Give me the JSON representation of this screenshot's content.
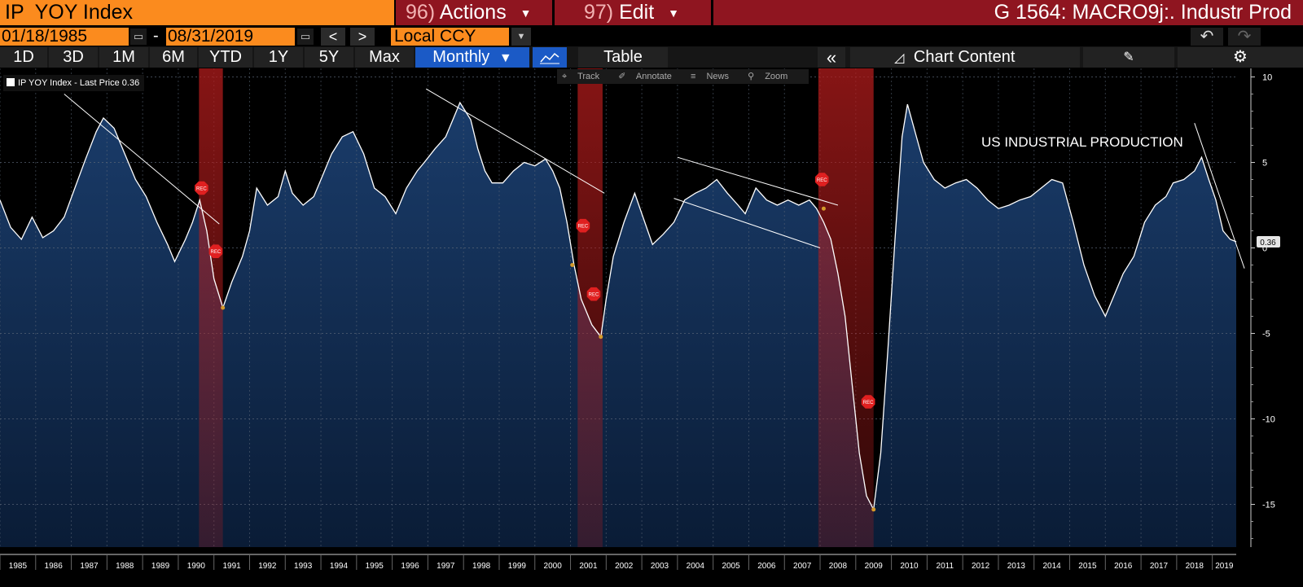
{
  "header": {
    "ticker": "IP  YOY Index",
    "actions_num": "96)",
    "actions_label": "Actions",
    "edit_num": "97)",
    "edit_label": "Edit",
    "title": "G 1564: MACRO9j:. Industr Prod"
  },
  "range": {
    "start": "01/18/1985",
    "dash": "-",
    "end": "08/31/2019",
    "prev": "<",
    "next": ">",
    "currency": "Local CCY"
  },
  "periods": [
    "1D",
    "3D",
    "1M",
    "6M",
    "YTD",
    "1Y",
    "5Y",
    "Max"
  ],
  "frequency": "Monthly",
  "toolbar": {
    "table_label": "Table",
    "collapse": "«",
    "chart_content_label": "Chart Content"
  },
  "chart_tools": [
    "Track",
    "Annotate",
    "News",
    "Zoom"
  ],
  "legend_text": "IP  YOY Index - Last Price 0.36",
  "recession_label": "REC",
  "colors": {
    "ticker_bg": "#fb8b1e",
    "menu_bg": "#8f1520",
    "active_btn": "#1b5ac6",
    "area_top": "#1a3c6a",
    "area_bottom": "#0a1c36",
    "line": "#ffffff",
    "recession": "#b31c1c"
  },
  "chart_data": {
    "type": "area",
    "title": "",
    "annotation": "US INDUSTRIAL PRODUCTION",
    "ylim": [
      -17.5,
      10.5
    ],
    "y_ticks": [
      10,
      5,
      0,
      -5,
      -10,
      -15
    ],
    "x_range": [
      1985.0,
      2019.67
    ],
    "x_ticks": [
      "1985",
      "1986",
      "1987",
      "1988",
      "1989",
      "1990",
      "1991",
      "1992",
      "1993",
      "1994",
      "1995",
      "1996",
      "1997",
      "1998",
      "1999",
      "2000",
      "2001",
      "2002",
      "2003",
      "2004",
      "2005",
      "2006",
      "2007",
      "2008",
      "2009",
      "2010",
      "2011",
      "2012",
      "2013",
      "2014",
      "2015",
      "2016",
      "2017",
      "2018",
      "2019"
    ],
    "last_price": 0.36,
    "last_price_label": "0.36",
    "grid": "on",
    "series": [
      {
        "name": "IP YOY Index",
        "points": [
          [
            1985.0,
            2.8
          ],
          [
            1985.3,
            1.2
          ],
          [
            1985.6,
            0.5
          ],
          [
            1985.9,
            1.8
          ],
          [
            1986.2,
            0.6
          ],
          [
            1986.5,
            1.0
          ],
          [
            1986.8,
            1.8
          ],
          [
            1987.1,
            3.5
          ],
          [
            1987.4,
            5.2
          ],
          [
            1987.7,
            6.8
          ],
          [
            1987.9,
            7.6
          ],
          [
            1988.2,
            7.0
          ],
          [
            1988.5,
            5.5
          ],
          [
            1988.8,
            4.0
          ],
          [
            1989.1,
            3.0
          ],
          [
            1989.4,
            1.5
          ],
          [
            1989.7,
            0.2
          ],
          [
            1989.9,
            -0.8
          ],
          [
            1990.2,
            0.5
          ],
          [
            1990.4,
            1.5
          ],
          [
            1990.6,
            2.8
          ],
          [
            1990.8,
            1.0
          ],
          [
            1991.0,
            -1.8
          ],
          [
            1991.25,
            -3.5
          ],
          [
            1991.5,
            -2.0
          ],
          [
            1991.8,
            -0.5
          ],
          [
            1992.0,
            1.0
          ],
          [
            1992.2,
            3.5
          ],
          [
            1992.5,
            2.5
          ],
          [
            1992.8,
            3.0
          ],
          [
            1993.0,
            4.5
          ],
          [
            1993.2,
            3.2
          ],
          [
            1993.5,
            2.5
          ],
          [
            1993.8,
            3.0
          ],
          [
            1994.0,
            4.0
          ],
          [
            1994.3,
            5.5
          ],
          [
            1994.6,
            6.5
          ],
          [
            1994.9,
            6.8
          ],
          [
            1995.2,
            5.5
          ],
          [
            1995.5,
            3.5
          ],
          [
            1995.8,
            3.0
          ],
          [
            1996.1,
            2.0
          ],
          [
            1996.4,
            3.5
          ],
          [
            1996.7,
            4.5
          ],
          [
            1996.9,
            5.0
          ],
          [
            1997.2,
            5.8
          ],
          [
            1997.5,
            6.5
          ],
          [
            1997.7,
            7.5
          ],
          [
            1997.9,
            8.5
          ],
          [
            1998.2,
            7.5
          ],
          [
            1998.4,
            5.8
          ],
          [
            1998.6,
            4.5
          ],
          [
            1998.8,
            3.8
          ],
          [
            1999.1,
            3.8
          ],
          [
            1999.4,
            4.5
          ],
          [
            1999.7,
            5.0
          ],
          [
            2000.0,
            4.8
          ],
          [
            2000.3,
            5.2
          ],
          [
            2000.5,
            4.5
          ],
          [
            2000.7,
            3.5
          ],
          [
            2000.9,
            1.5
          ],
          [
            2001.1,
            -1.0
          ],
          [
            2001.3,
            -3.0
          ],
          [
            2001.6,
            -4.5
          ],
          [
            2001.85,
            -5.2
          ],
          [
            2002.0,
            -3.0
          ],
          [
            2002.2,
            -0.5
          ],
          [
            2002.5,
            1.5
          ],
          [
            2002.8,
            3.2
          ],
          [
            2003.0,
            2.0
          ],
          [
            2003.3,
            0.2
          ],
          [
            2003.6,
            0.8
          ],
          [
            2003.9,
            1.5
          ],
          [
            2004.2,
            2.8
          ],
          [
            2004.5,
            3.2
          ],
          [
            2004.8,
            3.5
          ],
          [
            2005.1,
            4.0
          ],
          [
            2005.4,
            3.2
          ],
          [
            2005.7,
            2.5
          ],
          [
            2005.9,
            2.0
          ],
          [
            2006.2,
            3.5
          ],
          [
            2006.5,
            2.8
          ],
          [
            2006.8,
            2.5
          ],
          [
            2007.1,
            2.8
          ],
          [
            2007.4,
            2.5
          ],
          [
            2007.7,
            2.8
          ],
          [
            2007.9,
            2.3
          ],
          [
            2008.1,
            1.5
          ],
          [
            2008.3,
            0.5
          ],
          [
            2008.5,
            -1.5
          ],
          [
            2008.7,
            -4.0
          ],
          [
            2008.9,
            -8.0
          ],
          [
            2009.1,
            -12.0
          ],
          [
            2009.3,
            -14.5
          ],
          [
            2009.5,
            -15.3
          ],
          [
            2009.7,
            -12.0
          ],
          [
            2009.9,
            -6.0
          ],
          [
            2010.1,
            0.5
          ],
          [
            2010.3,
            6.5
          ],
          [
            2010.45,
            8.4
          ],
          [
            2010.7,
            6.5
          ],
          [
            2010.9,
            5.0
          ],
          [
            2011.2,
            4.0
          ],
          [
            2011.5,
            3.5
          ],
          [
            2011.8,
            3.8
          ],
          [
            2012.1,
            4.0
          ],
          [
            2012.4,
            3.5
          ],
          [
            2012.7,
            2.8
          ],
          [
            2013.0,
            2.3
          ],
          [
            2013.3,
            2.5
          ],
          [
            2013.6,
            2.8
          ],
          [
            2013.9,
            3.0
          ],
          [
            2014.2,
            3.5
          ],
          [
            2014.5,
            4.0
          ],
          [
            2014.8,
            3.8
          ],
          [
            2015.1,
            1.5
          ],
          [
            2015.4,
            -1.0
          ],
          [
            2015.7,
            -2.8
          ],
          [
            2016.0,
            -4.0
          ],
          [
            2016.2,
            -3.0
          ],
          [
            2016.5,
            -1.5
          ],
          [
            2016.8,
            -0.5
          ],
          [
            2017.1,
            1.5
          ],
          [
            2017.4,
            2.5
          ],
          [
            2017.7,
            3.0
          ],
          [
            2017.9,
            3.8
          ],
          [
            2018.2,
            4.0
          ],
          [
            2018.5,
            4.5
          ],
          [
            2018.7,
            5.3
          ],
          [
            2018.9,
            4.0
          ],
          [
            2019.1,
            2.8
          ],
          [
            2019.3,
            1.0
          ],
          [
            2019.5,
            0.5
          ],
          [
            2019.67,
            0.36
          ]
        ]
      }
    ],
    "recessions": [
      [
        1990.58,
        1991.25
      ],
      [
        2001.2,
        2001.9
      ],
      [
        2007.95,
        2009.5
      ]
    ],
    "trendlines": [
      [
        [
          1986.8,
          9.0
        ],
        [
          1991.15,
          1.4
        ]
      ],
      [
        [
          1996.95,
          9.3
        ],
        [
          2001.95,
          3.2
        ]
      ],
      [
        [
          2004.0,
          5.3
        ],
        [
          2008.5,
          2.5
        ]
      ],
      [
        [
          2003.9,
          2.9
        ],
        [
          2008.0,
          0.0
        ]
      ],
      [
        [
          2018.5,
          7.3
        ],
        [
          2019.9,
          -1.2
        ]
      ]
    ],
    "recession_markers": [
      [
        1990.65,
        3.5
      ],
      [
        1991.05,
        -0.2
      ],
      [
        2001.35,
        1.3
      ],
      [
        2001.65,
        -2.7
      ],
      [
        2008.05,
        4.0
      ],
      [
        2009.35,
        -9.0
      ]
    ],
    "turning_points": [
      [
        1991.25,
        -3.5
      ],
      [
        2001.05,
        -1.0
      ],
      [
        2001.85,
        -5.2
      ],
      [
        2008.1,
        2.3
      ],
      [
        2009.5,
        -15.3
      ]
    ]
  }
}
